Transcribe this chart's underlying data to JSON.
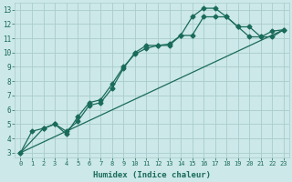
{
  "xlabel": "Humidex (Indice chaleur)",
  "bg_color": "#cce8e8",
  "grid_color": "#aacccc",
  "line_color": "#1a6b5a",
  "xlim": [
    -0.5,
    23.5
  ],
  "ylim": [
    2.7,
    13.5
  ],
  "xticks": [
    0,
    1,
    2,
    3,
    4,
    5,
    6,
    7,
    8,
    9,
    10,
    11,
    12,
    13,
    14,
    15,
    16,
    17,
    18,
    19,
    20,
    21,
    22,
    23
  ],
  "yticks": [
    3,
    4,
    5,
    6,
    7,
    8,
    9,
    10,
    11,
    12,
    13
  ],
  "line1_x": [
    0,
    1,
    2,
    3,
    4,
    5,
    6,
    7,
    8,
    9,
    10,
    11,
    12,
    13,
    14,
    15,
    16,
    17,
    18,
    19,
    20,
    21,
    22,
    23
  ],
  "line1_y": [
    3.0,
    4.5,
    4.7,
    5.0,
    4.3,
    5.5,
    6.5,
    6.7,
    7.8,
    9.0,
    9.9,
    10.3,
    10.5,
    10.6,
    11.2,
    12.5,
    13.1,
    13.1,
    12.5,
    11.8,
    11.1,
    11.1,
    11.5,
    11.6
  ],
  "line2_x": [
    0,
    2,
    3,
    4,
    5,
    6,
    7,
    8,
    9,
    10,
    11,
    12,
    13,
    14,
    15,
    16,
    17,
    18,
    19,
    20,
    21,
    22,
    23
  ],
  "line2_y": [
    3.0,
    4.7,
    5.0,
    4.5,
    5.2,
    6.3,
    6.5,
    7.5,
    8.9,
    10.0,
    10.5,
    10.5,
    10.5,
    11.2,
    11.2,
    12.5,
    12.5,
    12.5,
    11.8,
    11.8,
    11.1,
    11.1,
    11.6
  ],
  "line3_x": [
    0,
    23
  ],
  "line3_y": [
    3.0,
    11.6
  ],
  "marker": "D",
  "markersize": 2.5,
  "linewidth": 0.9
}
